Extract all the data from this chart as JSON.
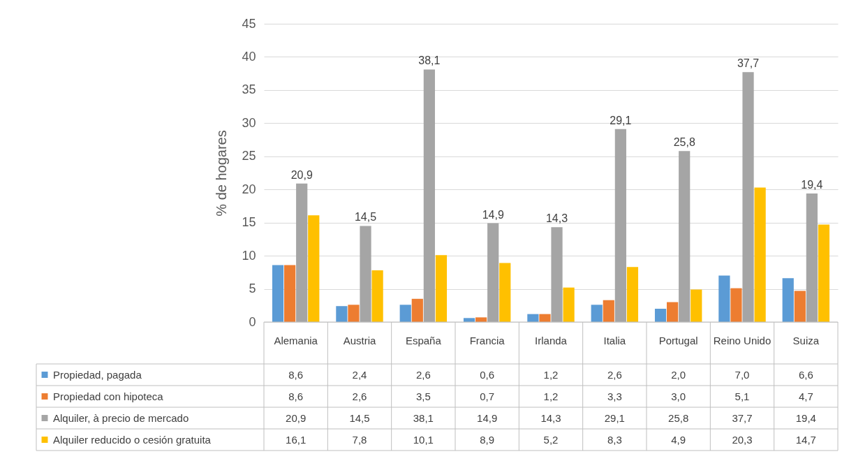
{
  "chart_data": {
    "type": "bar",
    "ylabel": "% de hogares",
    "categories": [
      "Alemania",
      "Austria",
      "España",
      "Francia",
      "Irlanda",
      "Italia",
      "Portugal",
      "Reino Unido",
      "Suiza"
    ],
    "series": [
      {
        "name": "Propiedad, pagada",
        "color": "#5b9bd5",
        "values": [
          8.6,
          2.4,
          2.6,
          0.6,
          1.2,
          2.6,
          2.0,
          7.0,
          6.6
        ],
        "value_labels": [
          "8,6",
          "2,4",
          "2,6",
          "0,6",
          "1,2",
          "2,6",
          "2,0",
          "7,0",
          "6,6"
        ]
      },
      {
        "name": "Propiedad con hipoteca",
        "color": "#ed7d31",
        "values": [
          8.6,
          2.6,
          3.5,
          0.7,
          1.2,
          3.3,
          3.0,
          5.1,
          4.7
        ],
        "value_labels": [
          "8,6",
          "2,6",
          "3,5",
          "0,7",
          "1,2",
          "3,3",
          "3,0",
          "5,1",
          "4,7"
        ]
      },
      {
        "name": "Alquiler, à precio de mercado",
        "color": "#a5a5a5",
        "values": [
          20.9,
          14.5,
          38.1,
          14.9,
          14.3,
          29.1,
          25.8,
          37.7,
          19.4
        ],
        "value_labels": [
          "20,9",
          "14,5",
          "38,1",
          "14,9",
          "14,3",
          "29,1",
          "25,8",
          "37,7",
          "19,4"
        ]
      },
      {
        "name": "Alquiler reducido o cesión gratuita",
        "color": "#ffc000",
        "values": [
          16.1,
          7.8,
          10.1,
          8.9,
          5.2,
          8.3,
          4.9,
          20.3,
          14.7
        ],
        "value_labels": [
          "16,1",
          "7,8",
          "10,1",
          "8,9",
          "5,2",
          "8,3",
          "4,9",
          "20,3",
          "14,7"
        ]
      }
    ],
    "ylim": [
      0,
      45
    ],
    "yticks": [
      0,
      5,
      10,
      15,
      20,
      25,
      30,
      35,
      40,
      45
    ],
    "grid": "y",
    "legend": "bottom"
  }
}
